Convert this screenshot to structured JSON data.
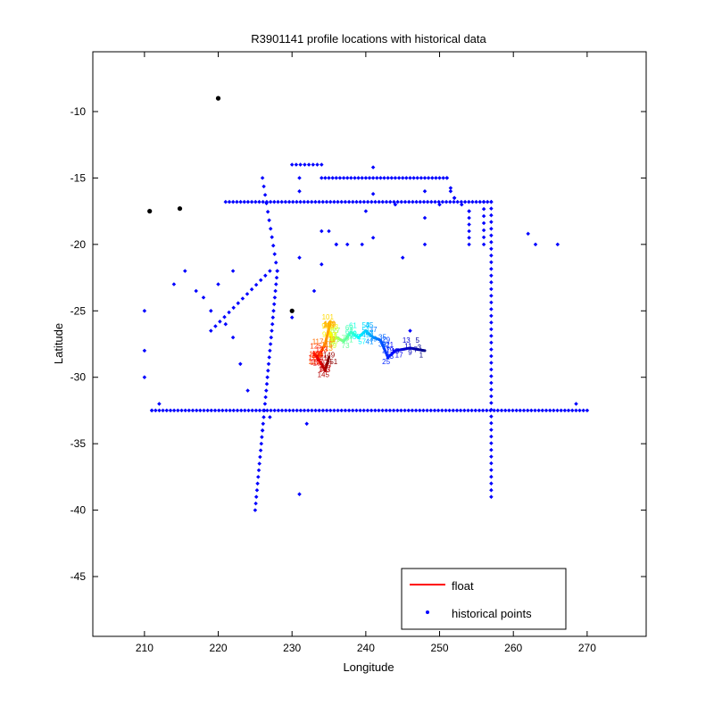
{
  "chart_data": {
    "type": "scatter",
    "title": "R3901141 profile locations with historical data",
    "xlabel": "Longitude",
    "ylabel": "Latitude",
    "xlim": [
      203,
      278
    ],
    "ylim": [
      -49.5,
      -5.5
    ],
    "xticks": [
      210,
      220,
      230,
      240,
      250,
      260,
      270
    ],
    "yticks": [
      -10,
      -15,
      -20,
      -25,
      -30,
      -35,
      -40,
      -45
    ],
    "grid": false,
    "legend_position": "bottom-right",
    "legend": [
      {
        "label": "float",
        "marker": "line",
        "color": "#ff0000"
      },
      {
        "label": "historical points",
        "marker": "dot",
        "color": "#0000ff"
      }
    ],
    "colors": {
      "historical": "#0000ff",
      "extra_points": "#000000",
      "float_start": "#00008f",
      "float_end": "#800000"
    },
    "series": [
      {
        "name": "historical points",
        "segments": [
          {
            "x0": 221,
            "y0": -16.8,
            "x1": 257,
            "y1": -16.8,
            "n": 72
          },
          {
            "x0": 211,
            "y0": -32.5,
            "x1": 270,
            "y1": -32.5,
            "n": 118
          },
          {
            "x0": 257,
            "y0": -16.8,
            "x1": 257,
            "y1": -39,
            "n": 45
          },
          {
            "x0": 228,
            "y0": -22,
            "x1": 225,
            "y1": -40,
            "n": 37
          },
          {
            "x0": 226,
            "y0": -15,
            "x1": 228,
            "y1": -22,
            "n": 12
          },
          {
            "x0": 234,
            "y0": -15,
            "x1": 251,
            "y1": -15,
            "n": 35
          },
          {
            "x0": 251,
            "y0": -15,
            "x1": 252,
            "y1": -16.5,
            "n": 3
          },
          {
            "x0": 254,
            "y0": -17.5,
            "x1": 254,
            "y1": -20,
            "n": 6
          },
          {
            "x0": 256,
            "y0": -16.8,
            "x1": 256,
            "y1": -20,
            "n": 7
          },
          {
            "x0": 219,
            "y0": -26.5,
            "x1": 227,
            "y1": -22,
            "n": 14
          },
          {
            "x0": 230,
            "y0": -14,
            "x1": 234,
            "y1": -14,
            "n": 8
          },
          {
            "x0": 235,
            "y0": -19,
            "x1": 236,
            "y1": -20,
            "n": 2
          }
        ],
        "points": [
          [
            210,
            -25
          ],
          [
            210,
            -28
          ],
          [
            210,
            -30
          ],
          [
            212,
            -32
          ],
          [
            214,
            -23
          ],
          [
            215.5,
            -22
          ],
          [
            217,
            -23.5
          ],
          [
            218,
            -24
          ],
          [
            219,
            -25
          ],
          [
            220,
            -23
          ],
          [
            221,
            -26
          ],
          [
            222,
            -22
          ],
          [
            222,
            -27
          ],
          [
            223,
            -29
          ],
          [
            224,
            -31
          ],
          [
            226,
            -34
          ],
          [
            227,
            -33
          ],
          [
            230,
            -25.5
          ],
          [
            231,
            -15
          ],
          [
            231,
            -16
          ],
          [
            231,
            -21
          ],
          [
            232,
            -33.5
          ],
          [
            233,
            -23.5
          ],
          [
            234,
            -19
          ],
          [
            234,
            -21.5
          ],
          [
            236,
            -20
          ],
          [
            237.5,
            -20
          ],
          [
            239.5,
            -20
          ],
          [
            241,
            -19.5
          ],
          [
            240,
            -17.5
          ],
          [
            241,
            -14.2
          ],
          [
            241,
            -16.2
          ],
          [
            244,
            -17
          ],
          [
            245,
            -21
          ],
          [
            246,
            -26.5
          ],
          [
            248,
            -16
          ],
          [
            248,
            -18
          ],
          [
            248,
            -20
          ],
          [
            250,
            -17
          ],
          [
            251.5,
            -16
          ],
          [
            252,
            -16.5
          ],
          [
            253,
            -17
          ],
          [
            254,
            -17.5
          ],
          [
            262,
            -19.2
          ],
          [
            263,
            -20
          ],
          [
            266,
            -20
          ],
          [
            268.5,
            -32
          ],
          [
            231,
            -38.8
          ],
          [
            211,
            -32.5
          ]
        ]
      },
      {
        "name": "float",
        "path": [
          [
            248,
            -28
          ],
          [
            246,
            -27.8
          ],
          [
            244,
            -28
          ],
          [
            243,
            -28.5
          ],
          [
            242,
            -27.2
          ],
          [
            241,
            -27
          ],
          [
            240,
            -26.5
          ],
          [
            239,
            -27
          ],
          [
            238,
            -26.6
          ],
          [
            237,
            -27.3
          ],
          [
            236,
            -27
          ],
          [
            235.5,
            -27.3
          ],
          [
            235,
            -26.5
          ],
          [
            235.2,
            -25.8
          ],
          [
            234.5,
            -27.5
          ],
          [
            233.5,
            -28.5
          ],
          [
            233,
            -28.2
          ],
          [
            234,
            -29
          ],
          [
            234.5,
            -29.5
          ],
          [
            235,
            -28.5
          ]
        ]
      }
    ],
    "extra_points": [
      [
        220,
        -9
      ],
      [
        210.7,
        -17.5
      ],
      [
        214.8,
        -17.3
      ],
      [
        230,
        -25
      ]
    ]
  }
}
